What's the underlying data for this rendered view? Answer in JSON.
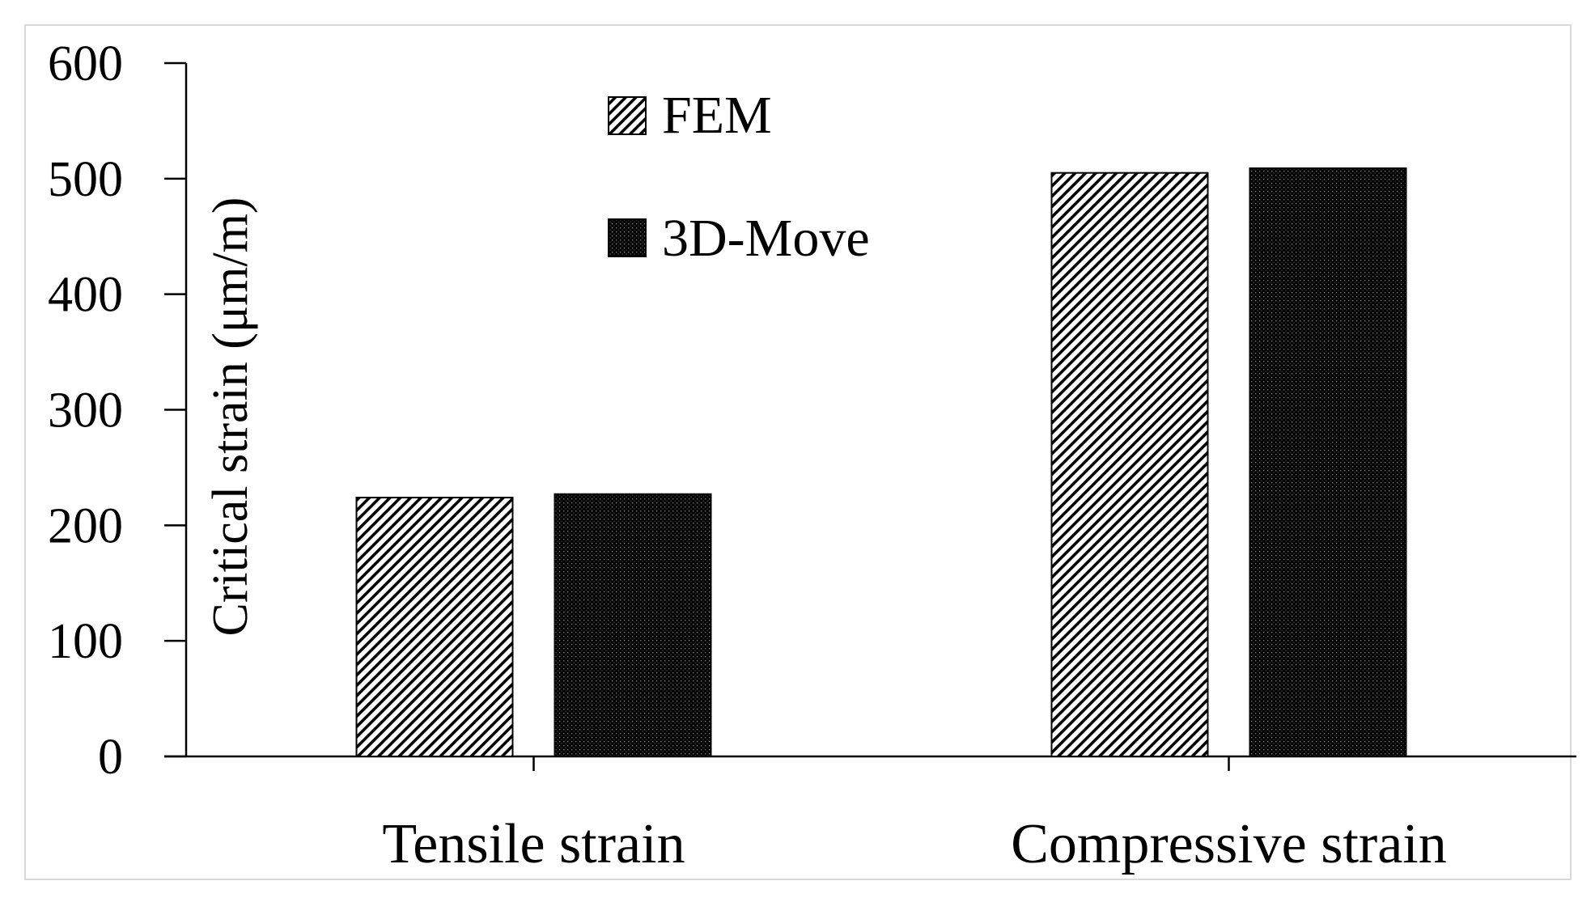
{
  "chart_data": {
    "type": "bar",
    "categories": [
      "Tensile strain",
      "Compressive strain"
    ],
    "series": [
      {
        "name": "FEM",
        "values": [
          224,
          505
        ],
        "pattern": "diagonal-hatch",
        "color": "#000000"
      },
      {
        "name": "3D-Move",
        "values": [
          227,
          509
        ],
        "pattern": "dense-dots",
        "color": "#000000"
      }
    ],
    "ylabel": "Critical strain (μm/m)",
    "ylim": [
      0,
      600
    ],
    "yticks": [
      "0",
      "100",
      "200",
      "300",
      "400",
      "500",
      "600"
    ],
    "grid": false,
    "legend": {
      "position": "top-center",
      "entries": [
        "FEM",
        "3D-Move"
      ]
    }
  }
}
